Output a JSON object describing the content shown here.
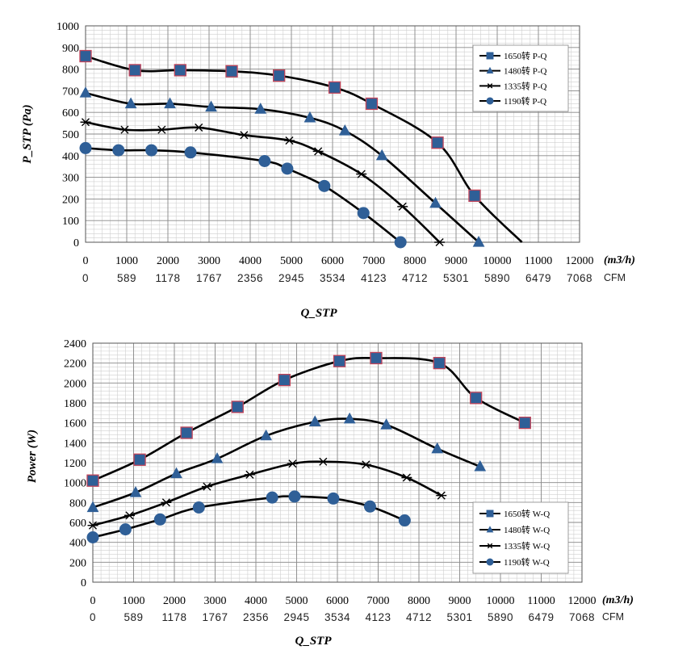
{
  "chart_data": [
    {
      "type": "line",
      "title": "",
      "xlabel": "Q_STP",
      "ylabel": "P_STP (Pa)",
      "x_unit": "(m3/h)",
      "cfm_unit": "CFM",
      "xlim": [
        0,
        12000
      ],
      "ylim": [
        0,
        1000
      ],
      "x_ticks": [
        "0",
        "1000",
        "2000",
        "3000",
        "4000",
        "5000",
        "6000",
        "7000",
        "8000",
        "9000",
        "10000",
        "11000",
        "12000"
      ],
      "y_ticks": [
        "0",
        "100",
        "200",
        "300",
        "400",
        "500",
        "600",
        "700",
        "800",
        "900",
        "1000"
      ],
      "cfm_ticks": [
        "0",
        "589",
        "1178",
        "1767",
        "2356",
        "2945",
        "3534",
        "4123",
        "4712",
        "5301",
        "5890",
        "6479",
        "7068"
      ],
      "grid": true,
      "legend_position": "top-right",
      "series": [
        {
          "name": "1650转 P-Q",
          "marker": "square",
          "color": "#2f5f97",
          "x": [
            0,
            1200,
            2300,
            3550,
            4700,
            6050,
            6950,
            8550,
            9450,
            10600
          ],
          "y": [
            860,
            795,
            795,
            790,
            770,
            715,
            640,
            460,
            215,
            0
          ],
          "marked": [
            true,
            true,
            true,
            true,
            true,
            true,
            true,
            true,
            true,
            false
          ]
        },
        {
          "name": "1480转 P-Q",
          "marker": "triangle",
          "color": "#2f5f97",
          "x": [
            0,
            1100,
            2050,
            3050,
            4250,
            5450,
            6300,
            7200,
            8500,
            9550
          ],
          "y": [
            690,
            640,
            640,
            625,
            615,
            575,
            515,
            400,
            180,
            0
          ],
          "marked": [
            true,
            true,
            true,
            true,
            true,
            true,
            true,
            true,
            true,
            true
          ]
        },
        {
          "name": "1335转 P-Q",
          "marker": "star",
          "color": "#000000",
          "x": [
            0,
            950,
            1850,
            2750,
            3850,
            4950,
            5650,
            6700,
            7700,
            8600
          ],
          "y": [
            555,
            520,
            520,
            530,
            495,
            470,
            420,
            315,
            165,
            0
          ],
          "marked": [
            true,
            true,
            true,
            true,
            true,
            true,
            true,
            true,
            true,
            true
          ]
        },
        {
          "name": "1190转 P-Q",
          "marker": "circle",
          "color": "#2f5f97",
          "x": [
            0,
            800,
            1600,
            2550,
            4350,
            4900,
            5800,
            6750,
            7650
          ],
          "y": [
            435,
            425,
            425,
            415,
            375,
            340,
            260,
            135,
            0
          ],
          "marked": [
            true,
            true,
            true,
            true,
            true,
            true,
            true,
            true,
            true
          ]
        }
      ]
    },
    {
      "type": "line",
      "title": "",
      "xlabel": "Q_STP",
      "ylabel": "Power (W)",
      "x_unit": "(m3/h)",
      "cfm_unit": "CFM",
      "xlim": [
        0,
        12000
      ],
      "ylim": [
        0,
        2400
      ],
      "x_ticks": [
        "0",
        "1000",
        "2000",
        "3000",
        "4000",
        "5000",
        "6000",
        "7000",
        "8000",
        "9000",
        "10000",
        "11000",
        "12000"
      ],
      "y_ticks": [
        "0",
        "200",
        "400",
        "600",
        "800",
        "1000",
        "1200",
        "1400",
        "1600",
        "1800",
        "2000",
        "2200",
        "2400"
      ],
      "cfm_ticks": [
        "0",
        "589",
        "1178",
        "1767",
        "2356",
        "2945",
        "3534",
        "4123",
        "4712",
        "5301",
        "5890",
        "6479",
        "7068"
      ],
      "grid": true,
      "legend_position": "bottom-right",
      "series": [
        {
          "name": "1650转 W-Q",
          "marker": "square",
          "color": "#2f5f97",
          "x": [
            0,
            1150,
            2300,
            3550,
            4700,
            6050,
            6950,
            8500,
            9400,
            10600
          ],
          "y": [
            1020,
            1230,
            1500,
            1760,
            2030,
            2220,
            2250,
            2200,
            1850,
            1600
          ],
          "marked": [
            true,
            true,
            true,
            true,
            true,
            true,
            true,
            true,
            true,
            true
          ]
        },
        {
          "name": "1480转 W-Q",
          "marker": "triangle",
          "color": "#2f5f97",
          "x": [
            0,
            1050,
            2050,
            3050,
            4250,
            5450,
            6300,
            7200,
            8450,
            9500
          ],
          "y": [
            750,
            900,
            1090,
            1240,
            1470,
            1610,
            1640,
            1580,
            1340,
            1160
          ],
          "marked": [
            true,
            true,
            true,
            true,
            true,
            true,
            true,
            true,
            true,
            true
          ]
        },
        {
          "name": "1335转 W-Q",
          "marker": "star",
          "color": "#000000",
          "x": [
            0,
            900,
            1800,
            2800,
            3850,
            4900,
            5650,
            6700,
            7700,
            8550
          ],
          "y": [
            570,
            670,
            800,
            960,
            1080,
            1190,
            1210,
            1180,
            1050,
            870
          ],
          "marked": [
            true,
            true,
            true,
            true,
            true,
            true,
            true,
            true,
            true,
            true
          ]
        },
        {
          "name": "1190转 W-Q",
          "marker": "circle",
          "color": "#2f5f97",
          "x": [
            0,
            800,
            1650,
            2600,
            4400,
            4950,
            5900,
            6800,
            7650
          ],
          "y": [
            450,
            530,
            630,
            750,
            850,
            860,
            840,
            760,
            620
          ],
          "marked": [
            true,
            true,
            true,
            true,
            true,
            true,
            true,
            true,
            true
          ]
        }
      ]
    }
  ]
}
